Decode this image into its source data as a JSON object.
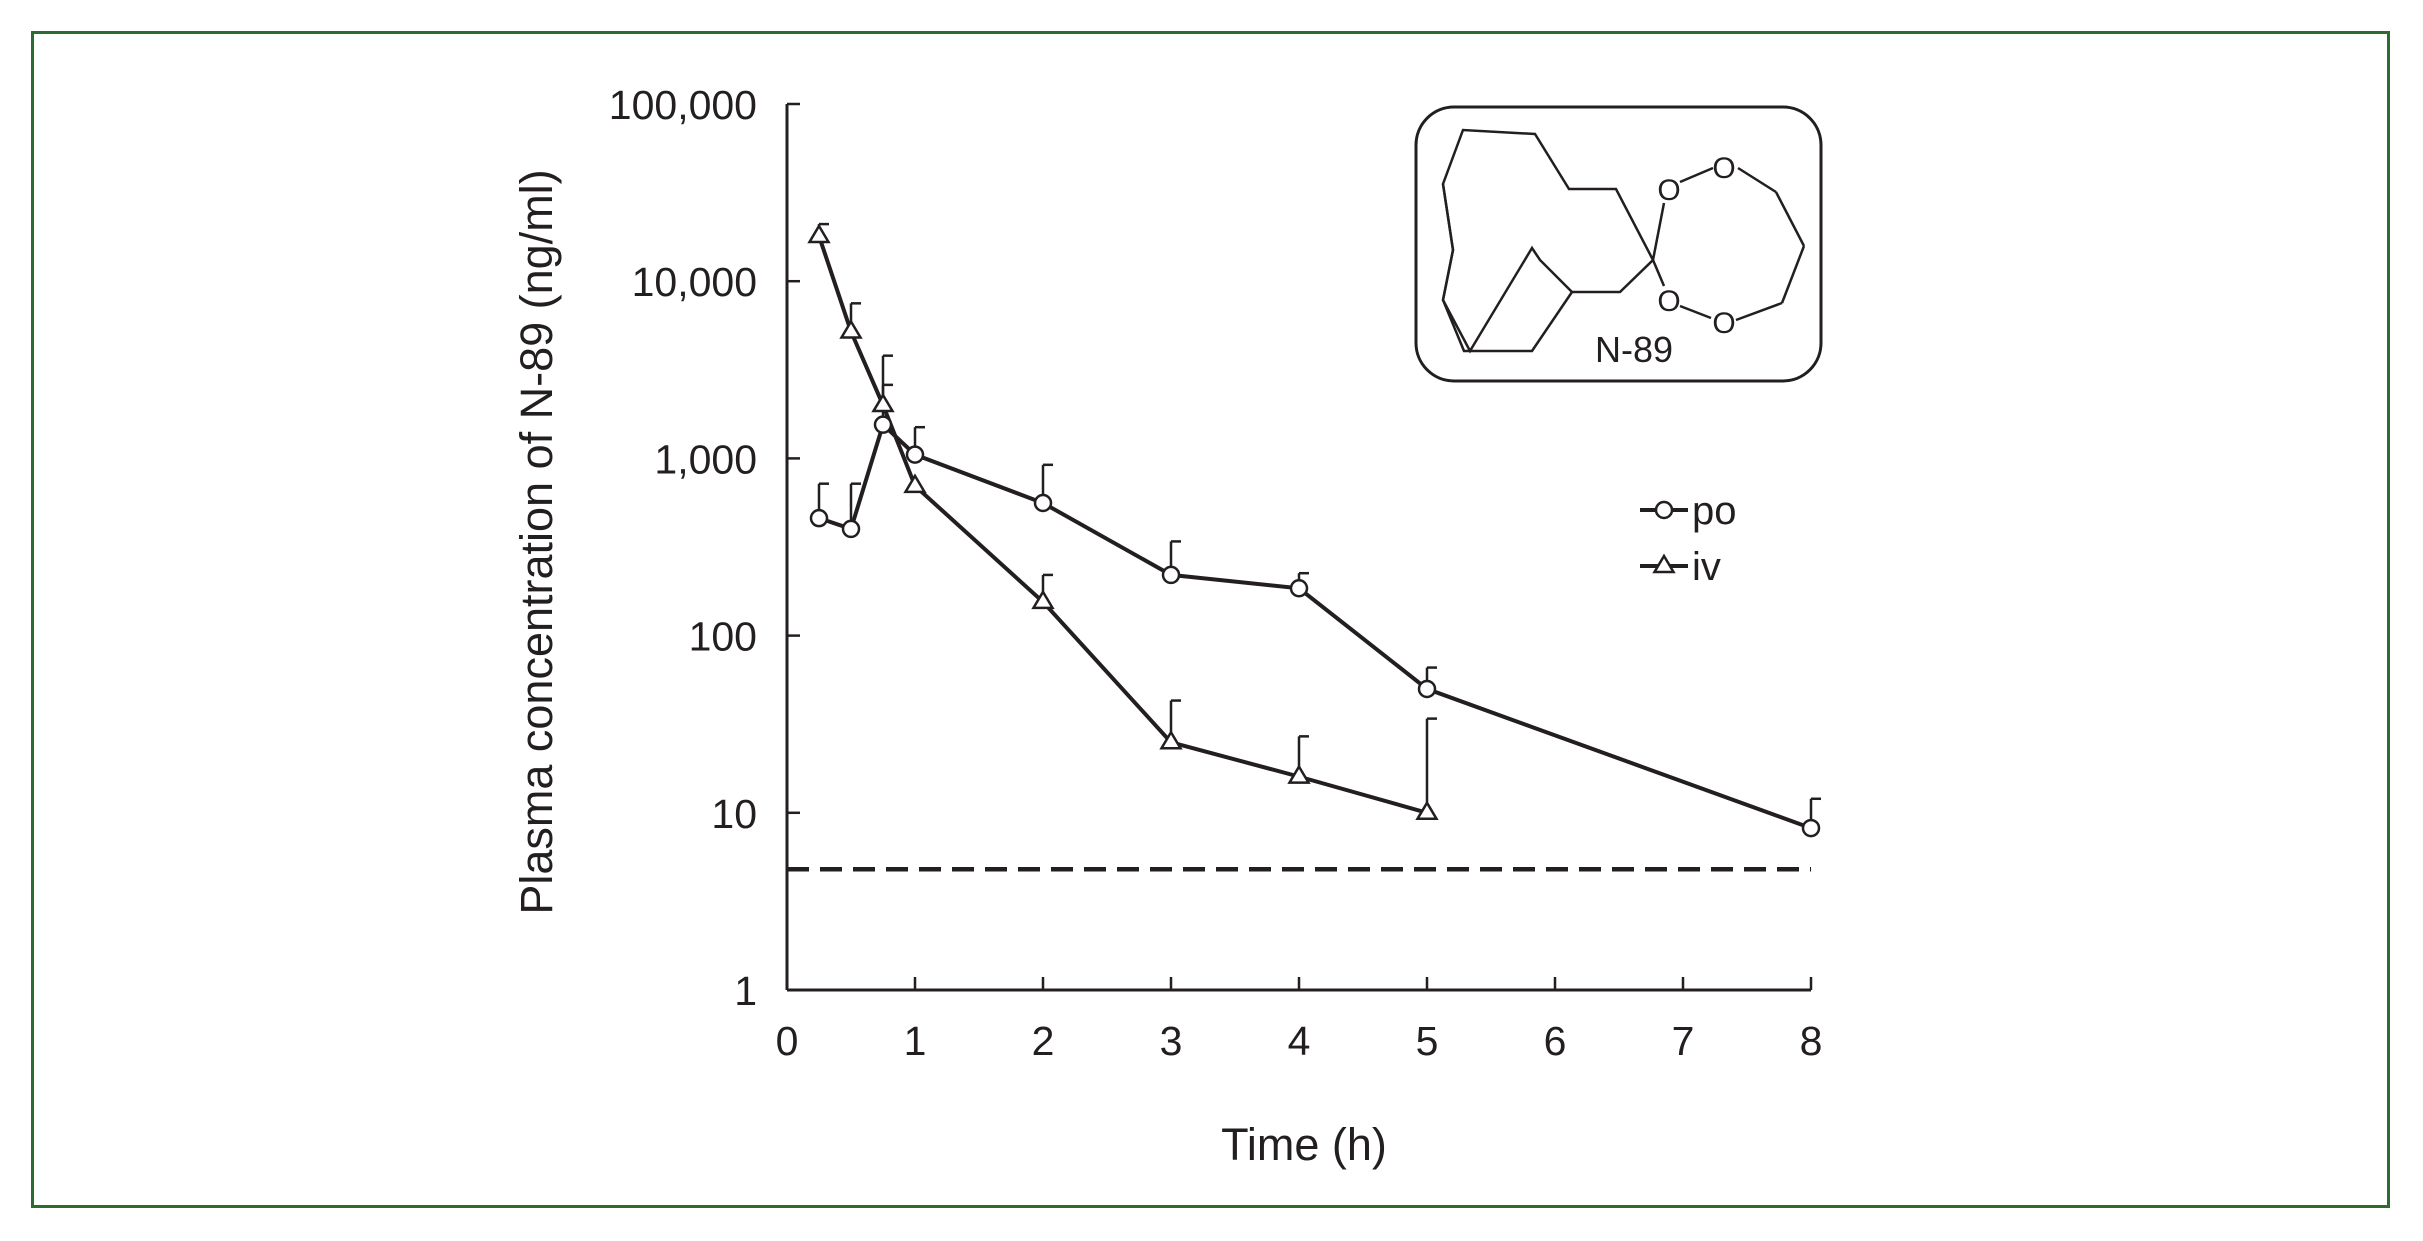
{
  "colors": {
    "frame": "#2e6b2e",
    "ink": "#231f20",
    "background": "#ffffff"
  },
  "chart_data": {
    "type": "line",
    "title": "",
    "xlabel": "Time (h)",
    "ylabel": "Plasma concentration of N-89 (ng/ml)",
    "xlim": [
      0,
      8
    ],
    "ylim": [
      1,
      100000
    ],
    "yscale": "log",
    "x_ticks": [
      0,
      1,
      2,
      3,
      4,
      5,
      6,
      7,
      8
    ],
    "x_tick_labels": [
      "0",
      "1",
      "2",
      "3",
      "4",
      "5",
      "6",
      "7",
      "8"
    ],
    "y_ticks": [
      1,
      10,
      100,
      1000,
      10000,
      100000
    ],
    "y_tick_labels": [
      "1",
      "10",
      "100",
      "1,000",
      "10,000",
      "100,000"
    ],
    "grid": false,
    "legend_position": "right",
    "series": [
      {
        "name": "po",
        "marker": "circle",
        "points": [
          {
            "x": 0.25,
            "y": 460,
            "err_top": 720
          },
          {
            "x": 0.5,
            "y": 400,
            "err_top": 720
          },
          {
            "x": 0.75,
            "y": 1550,
            "err_top": 2600
          },
          {
            "x": 1,
            "y": 1050,
            "err_top": 1500
          },
          {
            "x": 2,
            "y": 560,
            "err_top": 920
          },
          {
            "x": 3,
            "y": 220,
            "err_top": 340
          },
          {
            "x": 4,
            "y": 185,
            "err_top": 225
          },
          {
            "x": 5,
            "y": 50,
            "err_top": 66
          },
          {
            "x": 8,
            "y": 8.2,
            "err_top": 12
          }
        ]
      },
      {
        "name": "iv",
        "marker": "triangle",
        "points": [
          {
            "x": 0.25,
            "y": 18000,
            "err_top": 21000
          },
          {
            "x": 0.5,
            "y": 5200,
            "err_top": 7500
          },
          {
            "x": 0.75,
            "y": 2000,
            "err_top": 3800
          },
          {
            "x": 1,
            "y": 700
          },
          {
            "x": 2,
            "y": 155,
            "err_top": 220
          },
          {
            "x": 3,
            "y": 25,
            "err_top": 43
          },
          {
            "x": 4,
            "y": 16,
            "err_top": 27
          },
          {
            "x": 5,
            "y": 10,
            "err_top": 34
          }
        ]
      }
    ],
    "reference_line": {
      "y": 4.8,
      "style": "dashed"
    },
    "annotations": {
      "structure_label": "N-89",
      "oxygen_label": "O"
    }
  }
}
